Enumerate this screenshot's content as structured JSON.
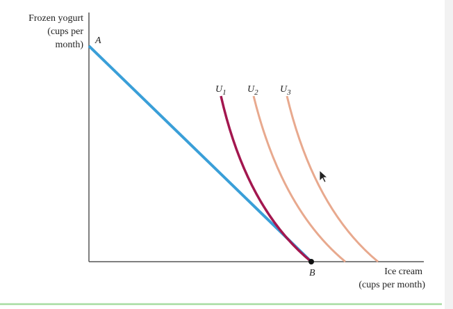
{
  "y_axis_label": [
    "Frozen yogurt",
    "(cups per",
    "month)"
  ],
  "x_axis_label": [
    "Ice cream",
    "(cups per month)"
  ],
  "points": {
    "a": "A",
    "b": "B"
  },
  "curves": [
    {
      "letter": "U",
      "sub": "1"
    },
    {
      "letter": "U",
      "sub": "2"
    },
    {
      "letter": "U",
      "sub": "3"
    }
  ]
}
